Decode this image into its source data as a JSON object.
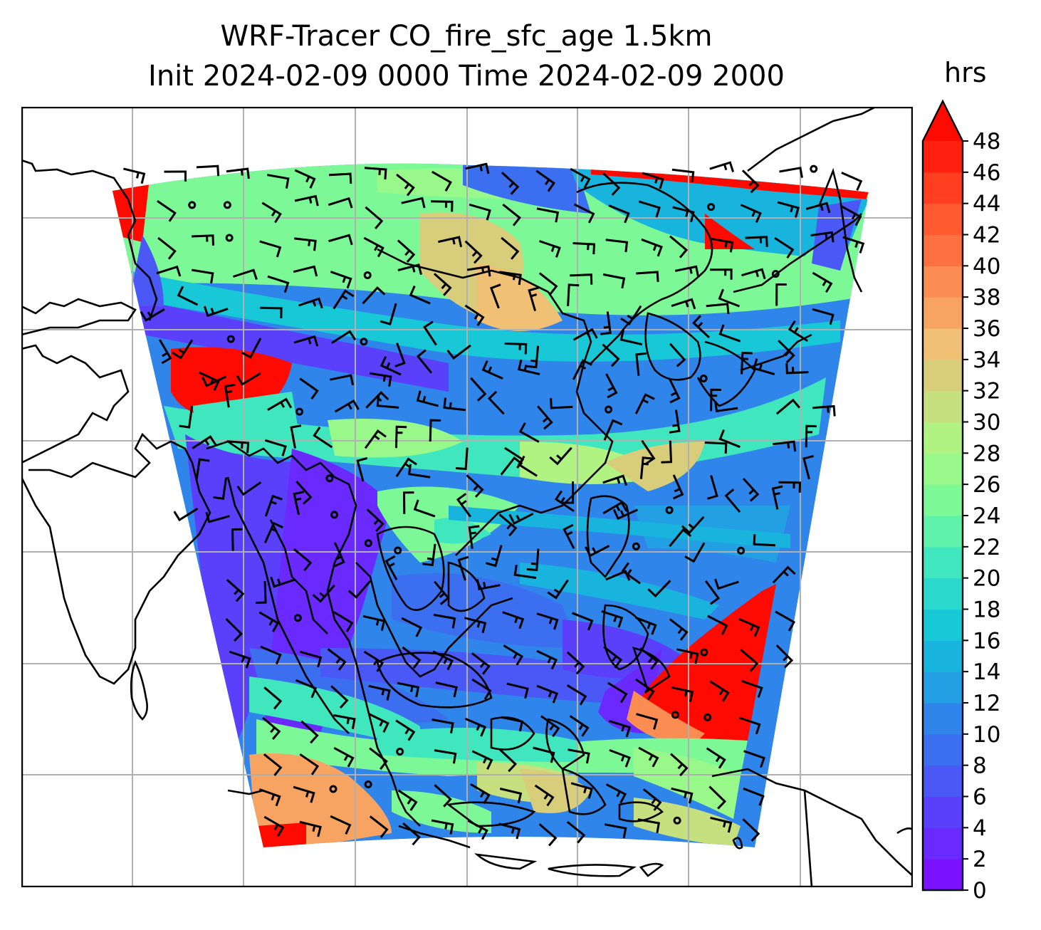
{
  "title": {
    "line1": "WRF-Tracer CO_fire_sfc_age 1.5km",
    "line2": "Init 2024-02-09 0000 Time 2024-02-09 2000"
  },
  "colorbar": {
    "unit": "hrs",
    "ticks": [
      "0",
      "2",
      "4",
      "6",
      "8",
      "10",
      "12",
      "14",
      "16",
      "18",
      "20",
      "22",
      "24",
      "26",
      "28",
      "30",
      "32",
      "34",
      "36",
      "38",
      "40",
      "42",
      "44",
      "46",
      "48"
    ],
    "extend": "max",
    "colors": [
      "#7a12ff",
      "#6a2aff",
      "#5a40fb",
      "#4a58f5",
      "#3c6ff0",
      "#2f85e9",
      "#22a0e3",
      "#18b4dd",
      "#18c8d6",
      "#2ad8cc",
      "#40e6bd",
      "#5ef2ab",
      "#7cf996",
      "#98f98a",
      "#b0f383",
      "#c6e07f",
      "#d8cd7a",
      "#f0c074",
      "#f7a463",
      "#fb8c52",
      "#ff7040",
      "#ff5a30",
      "#ff3f20",
      "#ff2010",
      "#ff0a00"
    ]
  },
  "map": {
    "gridlines": "on",
    "fill_field": "CO_fire_sfc_age",
    "wind_barbs": "on"
  }
}
